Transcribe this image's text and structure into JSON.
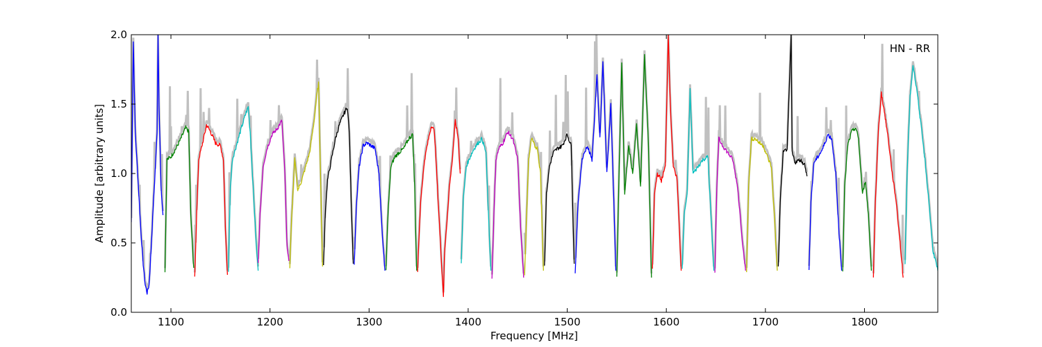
{
  "chart_data": {
    "type": "line",
    "xlabel": "Frequency [MHz]",
    "ylabel": "Amplitude [arbitrary units]",
    "annotation": "HN - RR",
    "annotation_position": "top-right",
    "xlim": [
      1060,
      1874
    ],
    "ylim": [
      0.0,
      2.0
    ],
    "x_ticks": [
      1100,
      1200,
      1300,
      1400,
      1500,
      1600,
      1700,
      1800
    ],
    "x_tick_labels": [
      "1100",
      "1200",
      "1300",
      "1400",
      "1500",
      "1600",
      "1700",
      "1800"
    ],
    "y_ticks": [
      0.0,
      0.5,
      1.0,
      1.5,
      2.0
    ],
    "y_tick_labels": [
      "0.0",
      "0.5",
      "1.0",
      "1.5",
      "2.0"
    ],
    "grid": false,
    "background_color": "#c0c0c0",
    "series_colors": [
      "#0000ff",
      "#008000",
      "#ff0000",
      "#00bfbf",
      "#bf00bf",
      "#bfbf00",
      "#000000"
    ],
    "series": [
      {
        "color": "#0000ff",
        "x": [
          1060,
          1062,
          1064,
          1066,
          1068,
          1070,
          1072,
          1074,
          1076,
          1078,
          1080,
          1082,
          1084,
          1086,
          1087,
          1088,
          1090,
          1092
        ],
        "y": [
          0.65,
          1.95,
          1.3,
          1.05,
          0.8,
          0.55,
          0.35,
          0.2,
          0.14,
          0.2,
          0.45,
          0.75,
          1.0,
          1.3,
          2.0,
          1.5,
          0.9,
          0.7
        ]
      },
      {
        "color": "#008000",
        "x": [
          1094,
          1096,
          1100,
          1105,
          1110,
          1115,
          1118,
          1120,
          1123
        ],
        "y": [
          0.3,
          1.1,
          1.12,
          1.18,
          1.25,
          1.33,
          1.3,
          0.7,
          0.32
        ]
      },
      {
        "color": "#ff0000",
        "x": [
          1124,
          1126,
          1128,
          1132,
          1136,
          1140,
          1145,
          1150,
          1153,
          1155,
          1157
        ],
        "y": [
          0.26,
          0.7,
          1.1,
          1.22,
          1.35,
          1.3,
          1.22,
          1.2,
          1.1,
          0.6,
          0.27
        ]
      },
      {
        "color": "#00bfbf",
        "x": [
          1158,
          1160,
          1162,
          1166,
          1170,
          1175,
          1178,
          1180,
          1183,
          1186,
          1188
        ],
        "y": [
          0.3,
          0.9,
          1.1,
          1.2,
          1.3,
          1.42,
          1.48,
          1.3,
          0.9,
          0.5,
          0.3
        ]
      },
      {
        "color": "#bf00bf",
        "x": [
          1188,
          1190,
          1193,
          1197,
          1202,
          1207,
          1212,
          1215,
          1217,
          1219
        ],
        "y": [
          0.35,
          0.7,
          1.05,
          1.18,
          1.28,
          1.32,
          1.38,
          1.0,
          0.5,
          0.37
        ]
      },
      {
        "color": "#bfbf00",
        "x": [
          1220,
          1222,
          1225,
          1228,
          1232,
          1236,
          1240,
          1244,
          1247,
          1249,
          1251,
          1253
        ],
        "y": [
          0.32,
          0.7,
          1.1,
          0.88,
          0.95,
          1.05,
          1.15,
          1.35,
          1.55,
          1.65,
          1.0,
          0.33
        ]
      },
      {
        "color": "#000000",
        "x": [
          1254,
          1256,
          1258,
          1262,
          1266,
          1270,
          1274,
          1278,
          1280,
          1282,
          1284
        ],
        "y": [
          0.33,
          0.75,
          0.95,
          1.1,
          1.25,
          1.35,
          1.42,
          1.48,
          1.3,
          0.8,
          0.35
        ]
      },
      {
        "color": "#0000ff",
        "x": [
          1285,
          1287,
          1290,
          1294,
          1298,
          1302,
          1306,
          1310,
          1313,
          1316
        ],
        "y": [
          0.33,
          0.75,
          1.05,
          1.2,
          1.22,
          1.2,
          1.18,
          1.0,
          0.6,
          0.3
        ]
      },
      {
        "color": "#008000",
        "x": [
          1317,
          1319,
          1322,
          1326,
          1330,
          1335,
          1340,
          1344,
          1346,
          1348
        ],
        "y": [
          0.3,
          0.7,
          1.05,
          1.12,
          1.15,
          1.18,
          1.25,
          1.28,
          0.9,
          0.3
        ]
      },
      {
        "color": "#ff0000",
        "x": [
          1349,
          1352,
          1356,
          1360,
          1363,
          1366,
          1369,
          1372,
          1375,
          1376,
          1378,
          1381,
          1384,
          1387,
          1390,
          1392
        ],
        "y": [
          0.3,
          0.8,
          1.1,
          1.25,
          1.35,
          1.3,
          0.9,
          0.5,
          0.12,
          0.4,
          0.6,
          0.9,
          1.1,
          1.38,
          1.25,
          1.0
        ]
      },
      {
        "color": "#00bfbf",
        "x": [
          1393,
          1395,
          1398,
          1402,
          1406,
          1410,
          1414,
          1418,
          1421,
          1423
        ],
        "y": [
          0.35,
          0.8,
          1.05,
          1.12,
          1.18,
          1.22,
          1.25,
          1.15,
          0.6,
          0.3
        ]
      },
      {
        "color": "#bf00bf",
        "x": [
          1424,
          1426,
          1428,
          1431,
          1435,
          1440,
          1445,
          1450,
          1453,
          1456
        ],
        "y": [
          0.25,
          0.7,
          1.1,
          1.18,
          1.22,
          1.3,
          1.25,
          1.1,
          0.6,
          0.25
        ]
      },
      {
        "color": "#bfbf00",
        "x": [
          1457,
          1459,
          1461,
          1464,
          1467,
          1470,
          1473,
          1476
        ],
        "y": [
          0.28,
          0.7,
          1.1,
          1.25,
          1.2,
          1.18,
          1.0,
          0.3
        ]
      },
      {
        "color": "#000000",
        "x": [
          1477,
          1479,
          1482,
          1486,
          1490,
          1495,
          1500,
          1504,
          1507
        ],
        "y": [
          0.33,
          0.85,
          1.05,
          1.15,
          1.18,
          1.2,
          1.28,
          1.2,
          0.35
        ]
      },
      {
        "color": "#0000ff",
        "x": [
          1508,
          1511,
          1515,
          1520,
          1525,
          1530,
          1533,
          1536,
          1540,
          1544,
          1547,
          1549
        ],
        "y": [
          0.28,
          0.8,
          1.1,
          1.2,
          1.1,
          1.7,
          1.25,
          1.8,
          1.0,
          1.5,
          0.8,
          0.3
        ]
      },
      {
        "color": "#008000",
        "x": [
          1550,
          1552,
          1555,
          1558,
          1562,
          1566,
          1570,
          1574,
          1578,
          1582,
          1585
        ],
        "y": [
          0.25,
          0.9,
          1.8,
          0.85,
          1.2,
          1.0,
          1.35,
          0.9,
          1.85,
          1.2,
          0.25
        ]
      },
      {
        "color": "#ff0000",
        "x": [
          1586,
          1588,
          1591,
          1595,
          1599,
          1602,
          1604,
          1607,
          1611,
          1615
        ],
        "y": [
          0.3,
          0.85,
          1.0,
          0.95,
          1.05,
          2.0,
          1.5,
          1.05,
          0.95,
          0.3
        ]
      },
      {
        "color": "#00bfbf",
        "x": [
          1616,
          1618,
          1621,
          1624,
          1627,
          1632,
          1637,
          1642,
          1645,
          1648
        ],
        "y": [
          0.3,
          0.7,
          0.85,
          1.6,
          1.0,
          1.05,
          1.1,
          1.12,
          0.7,
          0.3
        ]
      },
      {
        "color": "#bf00bf",
        "x": [
          1649,
          1651,
          1653,
          1657,
          1662,
          1667,
          1672,
          1677,
          1680
        ],
        "y": [
          0.3,
          0.9,
          1.25,
          1.2,
          1.15,
          1.1,
          0.9,
          0.5,
          0.3
        ]
      },
      {
        "color": "#bfbf00",
        "x": [
          1681,
          1683,
          1686,
          1690,
          1694,
          1698,
          1702,
          1706,
          1709,
          1712
        ],
        "y": [
          0.3,
          0.9,
          1.25,
          1.25,
          1.22,
          1.2,
          1.12,
          1.05,
          0.7,
          0.3
        ]
      },
      {
        "color": "#000000",
        "x": [
          1713,
          1715,
          1718,
          1722,
          1726,
          1727,
          1730,
          1735,
          1740,
          1742
        ],
        "y": [
          0.32,
          0.8,
          1.15,
          1.18,
          2.0,
          1.15,
          1.08,
          1.1,
          1.06,
          0.98
        ]
      },
      {
        "color": "#0000ff",
        "x": [
          1744,
          1746,
          1749,
          1753,
          1758,
          1763,
          1767,
          1771,
          1774,
          1777
        ],
        "y": [
          0.3,
          0.8,
          1.08,
          1.12,
          1.18,
          1.28,
          1.25,
          1.0,
          0.6,
          0.3
        ]
      },
      {
        "color": "#008000",
        "x": [
          1778,
          1780,
          1783,
          1787,
          1791,
          1794,
          1798,
          1801,
          1804,
          1807
        ],
        "y": [
          0.3,
          0.9,
          1.2,
          1.3,
          1.33,
          1.25,
          0.85,
          0.95,
          0.7,
          0.3
        ]
      },
      {
        "color": "#ff0000",
        "x": [
          1809,
          1811,
          1814,
          1817,
          1820,
          1824,
          1828,
          1832,
          1836,
          1839
        ],
        "y": [
          0.26,
          0.8,
          1.3,
          1.58,
          1.45,
          1.25,
          1.0,
          0.8,
          0.5,
          0.25
        ]
      },
      {
        "color": "#00bfbf",
        "x": [
          1841,
          1843,
          1846,
          1849,
          1853,
          1857,
          1861,
          1865,
          1869,
          1874
        ],
        "y": [
          0.35,
          1.0,
          1.55,
          1.78,
          1.6,
          1.35,
          1.1,
          0.8,
          0.45,
          0.3
        ]
      }
    ]
  }
}
